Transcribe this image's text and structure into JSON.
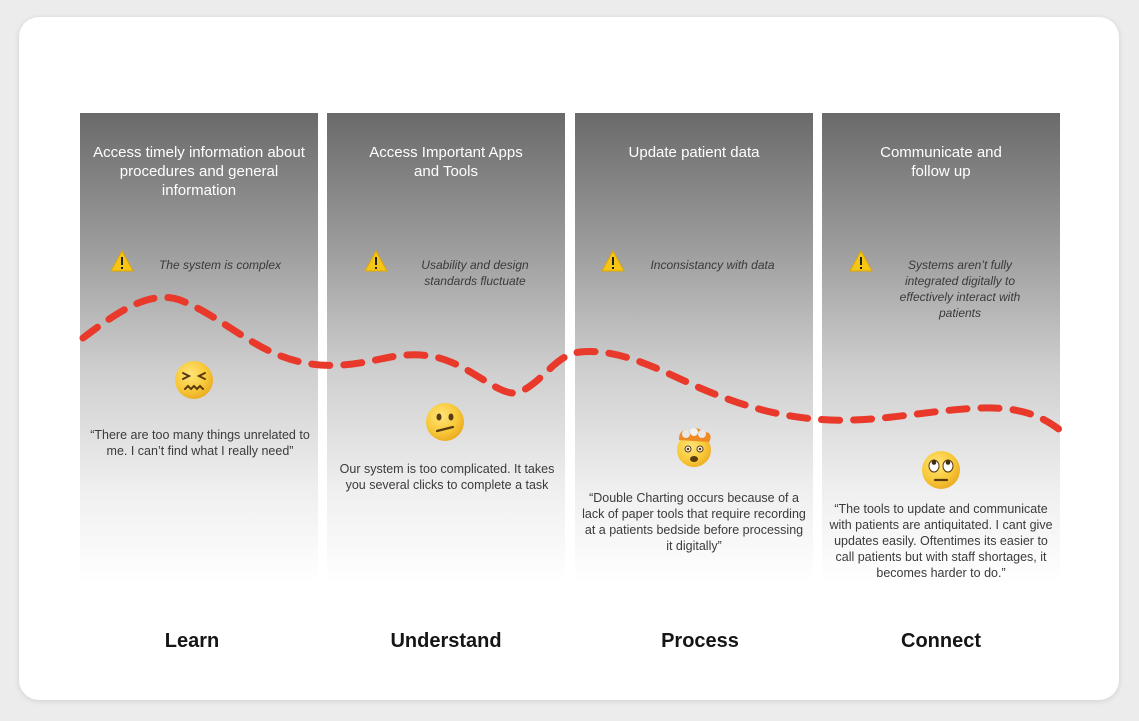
{
  "columns": [
    {
      "title": "Access timely information about procedures and general information",
      "pain_point": "The system is complex",
      "quote": "“There are too many things unrelated to me. I can’t find what I really need”",
      "stage": "Learn",
      "emoji_icon": "confounded-face-icon"
    },
    {
      "title": "Access Important Apps and Tools",
      "pain_point": "Usability and design standards fluctuate",
      "quote": "Our system is too complicated. It takes you several clicks to complete a task",
      "stage": "Understand",
      "emoji_icon": "confused-face-icon"
    },
    {
      "title": "Update patient data",
      "pain_point": "Inconsistancy with data",
      "quote": "“Double Charting occurs because of a lack of paper tools that require recording at a patients bedside before processing it digitally”",
      "stage": "Process",
      "emoji_icon": "exploding-head-icon"
    },
    {
      "title": "Communicate and follow up",
      "pain_point": "Systems aren’t fully integrated digitally to effectively interact with patients",
      "quote": "“The tools to update and communicate with patients are antiquitated. I cant give updates easily. Oftentimes its easier to call patients but with staff shortages, it becomes harder to do.”",
      "stage": "Connect",
      "emoji_icon": "eye-roll-face-icon"
    }
  ],
  "colors": {
    "journey_line": "#e8392b",
    "warning": "#f5c518"
  }
}
